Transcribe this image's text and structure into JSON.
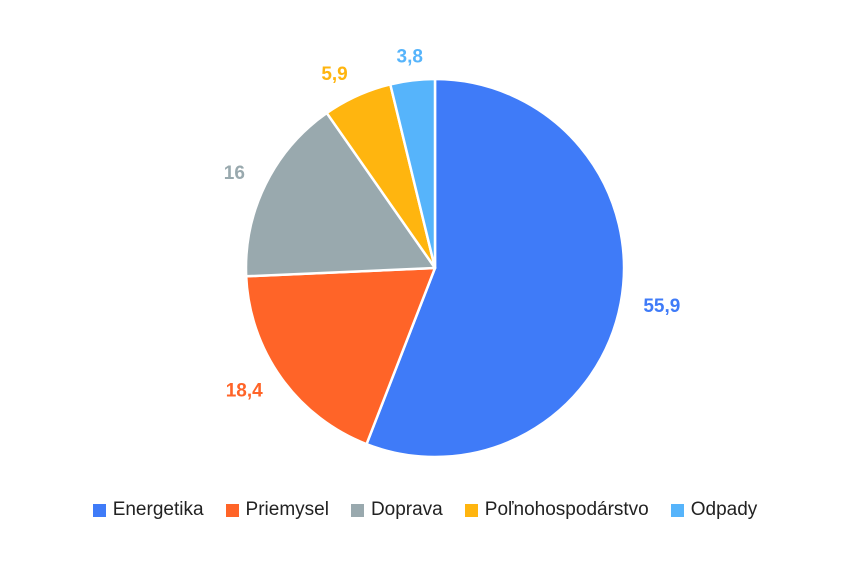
{
  "chart_data": {
    "type": "pie",
    "title": "",
    "categories": [
      "Energetika",
      "Priemysel",
      "Doprava",
      "Poľnohospodárstvo",
      "Odpady"
    ],
    "values": [
      55.9,
      18.4,
      16,
      5.9,
      3.8
    ],
    "value_labels": [
      "55,9",
      "18,4",
      "16",
      "5,9",
      "3,8"
    ],
    "colors": [
      "#3F7BF8",
      "#FF6428",
      "#99A9AE",
      "#FFB50F",
      "#56B4FB"
    ],
    "start_angle": "12 o'clock",
    "direction": "clockwise",
    "legend_position": "bottom-center"
  }
}
